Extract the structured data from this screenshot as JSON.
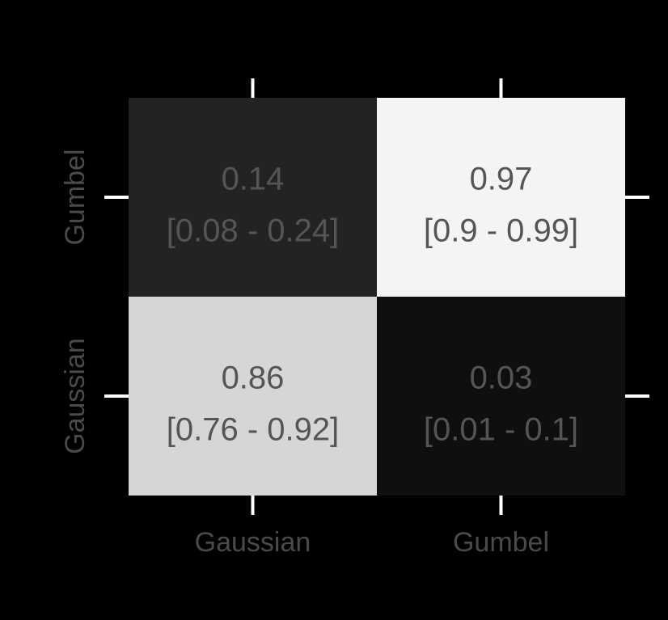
{
  "chart_data": {
    "type": "heatmap",
    "title": "",
    "xlabel": "",
    "ylabel": "",
    "x_categories": [
      "Gaussian",
      "Gumbel"
    ],
    "y_categories": [
      "Gumbel",
      "Gaussian"
    ],
    "cells": [
      {
        "x": "Gaussian",
        "y": "Gumbel",
        "value": 0.14,
        "value_label": "0.14",
        "interval_label": "[0.08 - 0.24]",
        "fill": "#232323"
      },
      {
        "x": "Gumbel",
        "y": "Gumbel",
        "value": 0.97,
        "value_label": "0.97",
        "interval_label": "[0.9 - 0.99]",
        "fill": "#f4f4f4"
      },
      {
        "x": "Gaussian",
        "y": "Gaussian",
        "value": 0.86,
        "value_label": "0.86",
        "interval_label": "[0.76 - 0.92]",
        "fill": "#d6d6d6"
      },
      {
        "x": "Gumbel",
        "y": "Gaussian",
        "value": 0.03,
        "value_label": "0.03",
        "interval_label": "[0.01 - 0.1]",
        "fill": "#0f0f0f"
      }
    ],
    "colors": {
      "background": "#000000",
      "tick": "#ffffff",
      "tick_label": "#4a4a4a",
      "cell_text": "#555555"
    }
  }
}
